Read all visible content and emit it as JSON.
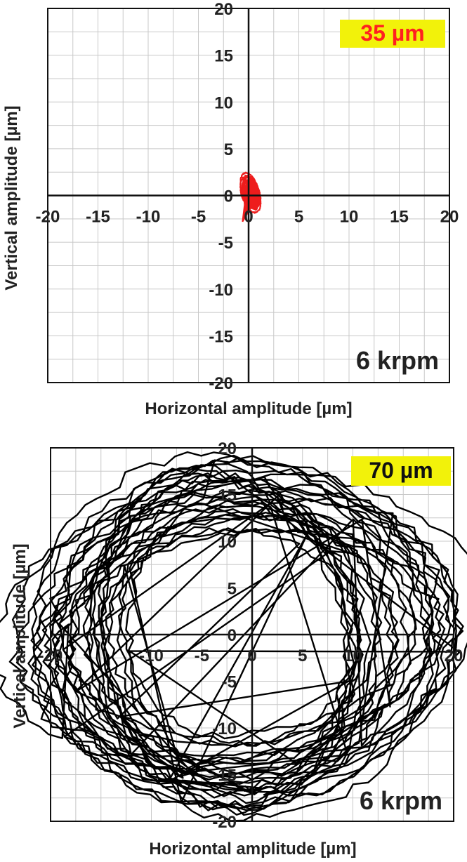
{
  "chart_data": [
    {
      "type": "scatter",
      "xlabel": "Horizontal amplitude [µm]",
      "ylabel": "Vertical amplitude [µm]",
      "xlim": [
        -20,
        20
      ],
      "ylim": [
        -20,
        20
      ],
      "grid": true,
      "xticks": [
        "-20",
        "-15",
        "-10",
        "-5",
        "0",
        "5",
        "10",
        "15",
        "20"
      ],
      "yticks": [
        "20",
        "15",
        "10",
        "5",
        "0",
        "-5",
        "-10",
        "-15",
        "-20"
      ],
      "badge": "35 µm",
      "badge_color": "#ff2020",
      "badge_bg": "#f2f20a",
      "annotation": "6 krpm",
      "series": [
        {
          "color": "#ee1c1c",
          "orbit": {
            "cx": 0.2,
            "cy": 0.2,
            "rx": 0.7,
            "ry": 1.8,
            "rx_var": 0.3,
            "ry_var": 0.6,
            "loops": 8,
            "tilt": 0.25
          },
          "points": [
            [
              0.2,
              2.0
            ],
            [
              0.9,
              1.0
            ],
            [
              0.8,
              -0.5
            ],
            [
              0.1,
              -1.5
            ],
            [
              -0.6,
              -2.8
            ],
            [
              -0.4,
              -1.0
            ],
            [
              -0.5,
              0.5
            ],
            [
              0.0,
              1.8
            ]
          ]
        }
      ]
    },
    {
      "type": "scatter",
      "xlabel": "Horizontal amplitude [µm]",
      "ylabel": "Vertical amplitude [µm]",
      "xlim": [
        -20,
        20
      ],
      "ylim": [
        -20,
        20
      ],
      "grid": true,
      "xticks": [
        "-20",
        "-10",
        "-5",
        "0",
        "5",
        "10",
        "20"
      ],
      "xtick_values": [
        -20,
        -10,
        -5,
        0,
        5,
        10,
        20
      ],
      "yticks": [
        "20",
        "15",
        "10",
        "5",
        "0",
        "-5",
        "-10",
        "-15",
        "-20"
      ],
      "badge": "70 µm",
      "badge_color": "#111111",
      "badge_bg": "#f2f20a",
      "annotation": "6 krpm",
      "series": [
        {
          "color": "#000000",
          "orbit": {
            "cx": -1.5,
            "cy": 0.0,
            "rx": 17.5,
            "ry": 15.5,
            "rx_var": 6.0,
            "ry_var": 4.0,
            "loops": 30,
            "tilt": 0.15
          },
          "points": [
            [
              -2,
              17.5
            ],
            [
              8,
              16.5
            ],
            [
              16,
              10
            ],
            [
              19,
              0
            ],
            [
              16,
              -10
            ],
            [
              6,
              -16.5
            ],
            [
              -4,
              -17.5
            ],
            [
              -14,
              -13
            ],
            [
              -19.5,
              -3
            ],
            [
              -18,
              7
            ],
            [
              -11,
              14.5
            ],
            [
              -2,
              17.5
            ]
          ]
        }
      ]
    }
  ]
}
